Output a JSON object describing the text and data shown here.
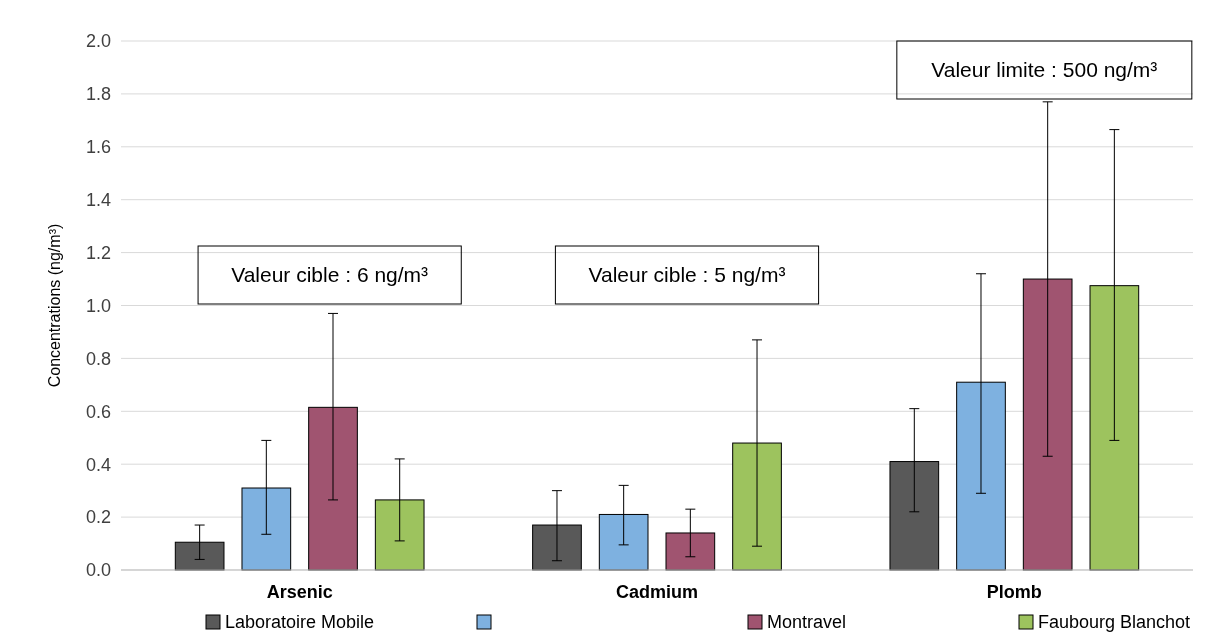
{
  "chart_data": {
    "type": "bar",
    "ylabel": "Concentrations (ng/m³)",
    "categories": [
      "Arsenic",
      "Cadmium",
      "Plomb"
    ],
    "ylim": [
      0,
      2.0
    ],
    "yticks": [
      {
        "value": 0,
        "label": "0.0"
      },
      {
        "value": 0.2,
        "label": "0.2"
      },
      {
        "value": 0.4,
        "label": "0.4"
      },
      {
        "value": 0.6,
        "label": "0.6"
      },
      {
        "value": 0.8,
        "label": "0.8"
      },
      {
        "value": 1.0,
        "label": "1.0"
      },
      {
        "value": 1.2,
        "label": "1.2"
      },
      {
        "value": 1.4,
        "label": "1.4"
      },
      {
        "value": 1.6,
        "label": "1.6"
      },
      {
        "value": 1.8,
        "label": "1.8"
      },
      {
        "value": 2.0,
        "label": "2.0"
      }
    ],
    "grid": "y",
    "legend": "bottom",
    "series": [
      {
        "name": "Laboratoire Mobile",
        "color": "#595959",
        "values": [
          0.105,
          0.17,
          0.41
        ],
        "errors": [
          [
            0.04,
            0.17
          ],
          [
            0.035,
            0.3
          ],
          [
            0.22,
            0.61
          ]
        ]
      },
      {
        "color": "#7eb1e0",
        "values": [
          0.31,
          0.21,
          0.71
        ],
        "errors": [
          [
            0.135,
            0.49
          ],
          [
            0.095,
            0.32
          ],
          [
            0.29,
            1.12
          ]
        ]
      },
      {
        "name": "Montravel",
        "color": "#a05470",
        "values": [
          0.615,
          0.14,
          1.1
        ],
        "errors": [
          [
            0.265,
            0.97
          ],
          [
            0.05,
            0.23
          ],
          [
            0.43,
            1.77
          ]
        ]
      },
      {
        "name": "Faubourg Blanchot",
        "color": "#9dc35e",
        "values": [
          0.265,
          0.48,
          1.075
        ],
        "errors": [
          [
            0.11,
            0.42
          ],
          [
            0.09,
            0.87
          ],
          [
            0.49,
            1.665
          ]
        ]
      }
    ],
    "annotations": [
      "Valeur cible : 6 ng/m³",
      "Valeur cible : 5 ng/m³",
      "Valeur limite : 500 ng/m³"
    ]
  }
}
